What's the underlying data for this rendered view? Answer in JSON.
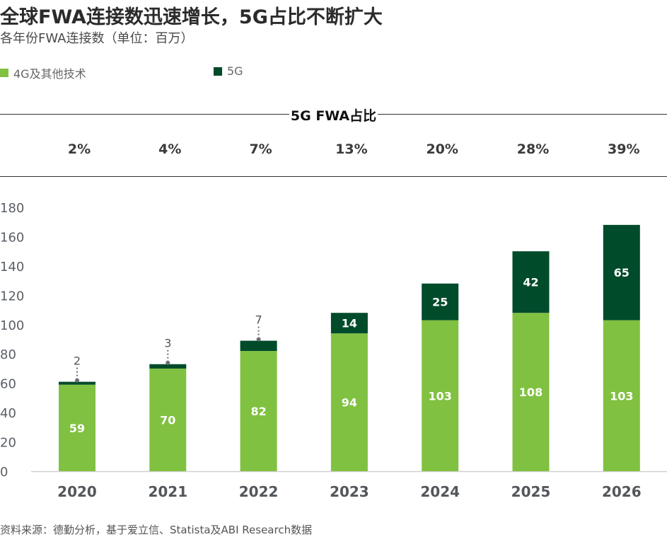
{
  "header": {
    "title": "全球FWA连接数迅速增长，5G占比不断扩大",
    "subtitle": "各年份FWA连接数（单位：百万）"
  },
  "legend": [
    {
      "label": "4G及其他技术",
      "color": "#80C141"
    },
    {
      "label": "5G",
      "color": "#004B2A"
    }
  ],
  "share_panel": {
    "heading": "5G FWA占比",
    "values": [
      "2%",
      "4%",
      "7%",
      "13%",
      "20%",
      "28%",
      "39%"
    ]
  },
  "footer": {
    "source": "资料来源：德勤分析，基于爱立信、Statista及ABI Research数据"
  },
  "chart_data": {
    "type": "bar",
    "stacked": true,
    "title": "全球FWA连接数迅速增长，5G占比不断扩大",
    "subtitle": "各年份FWA连接数（单位：百万）",
    "xlabel": "",
    "ylabel": "",
    "categories": [
      "2020",
      "2021",
      "2022",
      "2023",
      "2024",
      "2025",
      "2026"
    ],
    "series": [
      {
        "name": "4G及其他技术",
        "color": "#80C141",
        "values": [
          59,
          70,
          82,
          94,
          103,
          108,
          103
        ]
      },
      {
        "name": "5G",
        "color": "#004B2A",
        "values": [
          2,
          3,
          7,
          14,
          25,
          42,
          65
        ]
      }
    ],
    "data_labels_outside_for_5g": [
      true,
      true,
      true,
      false,
      false,
      false,
      false
    ],
    "ylim": [
      0,
      180
    ],
    "yticks": [
      0,
      20,
      40,
      60,
      80,
      100,
      120,
      140,
      160,
      180
    ],
    "grid": false,
    "legend_position": "top-left",
    "colors": {
      "axis_text": "#5a5f66",
      "category_text": "#53565A",
      "baseline": "#d0d0d0",
      "label_inside": "#ffffff",
      "label_outside": "#53565A",
      "leader_line": "#6b6f75"
    }
  }
}
